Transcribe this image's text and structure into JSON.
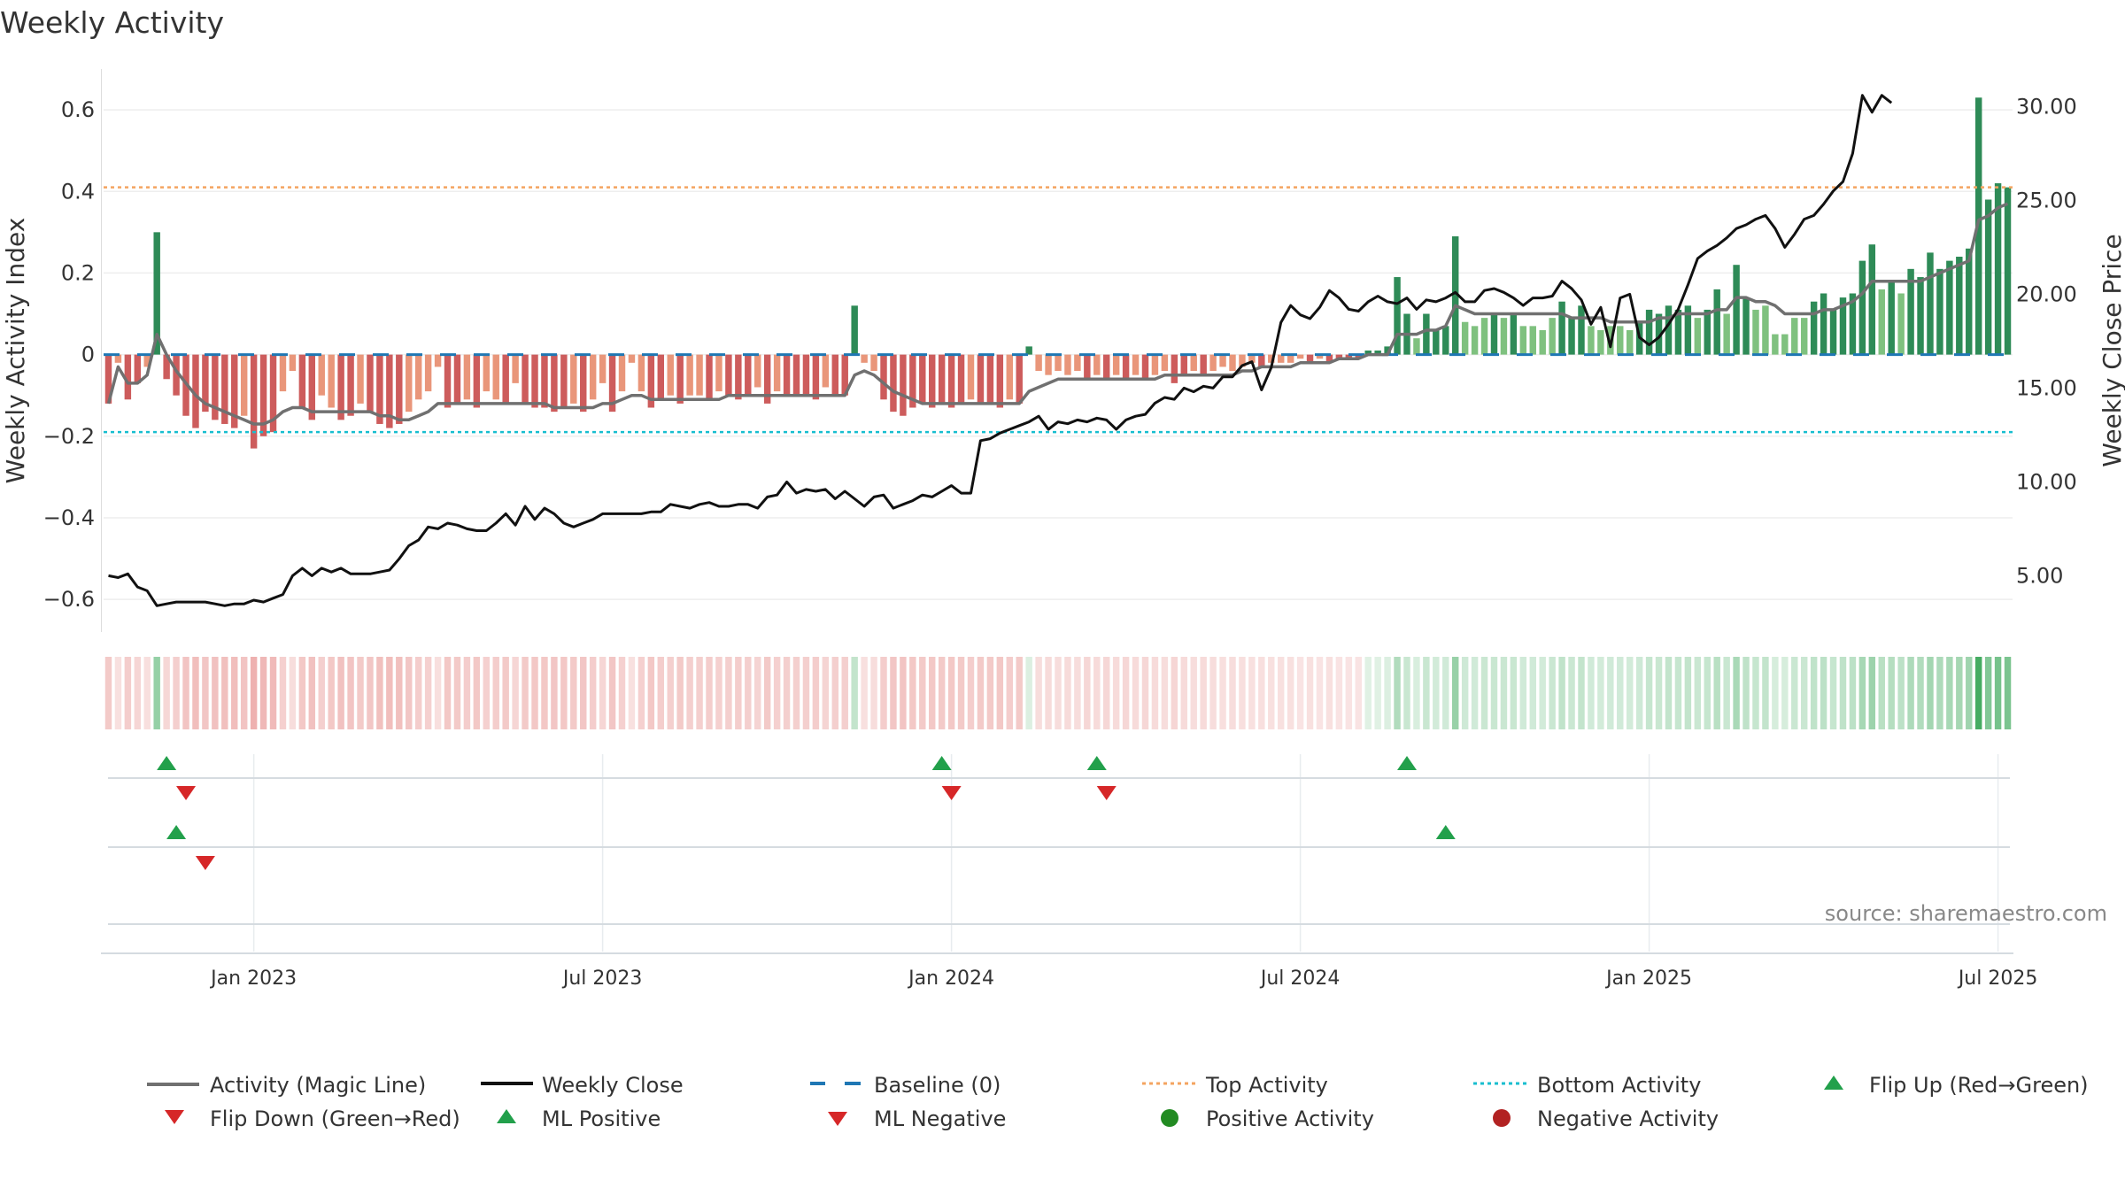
{
  "chart_data": {
    "type": "bar",
    "title": "Weekly Activity",
    "ylabel": "Weekly Activity Index",
    "y2label": "Weekly Close Price",
    "source": "source: sharemaestro.com",
    "ylim": [
      -0.68,
      0.7
    ],
    "y2lim": [
      2.0,
      32.0
    ],
    "y_ticks": [
      0.6,
      0.4,
      0.2,
      0,
      -0.2,
      -0.4,
      -0.6
    ],
    "y_tick_labels": [
      "0.6",
      "0.4",
      "0.2",
      "0",
      "−0.2",
      "−0.4",
      "−0.6"
    ],
    "y2_ticks": [
      30,
      25,
      20,
      15,
      10,
      5
    ],
    "y2_tick_labels": [
      "30.00",
      "25.00",
      "20.00",
      "15.00",
      "10.00",
      "5.00"
    ],
    "x_tick_labels": [
      "Jan 2023",
      "Jul 2023",
      "Jan 2024",
      "Jul 2024",
      "Jan 2025",
      "Jul 2025"
    ],
    "x_tick_weeks": [
      15,
      51,
      87,
      123,
      159,
      195
    ],
    "top_activity": 0.41,
    "bottom_activity": -0.19,
    "baseline": 0,
    "activity": [
      -0.12,
      -0.02,
      -0.11,
      -0.07,
      -0.03,
      0.3,
      -0.06,
      -0.1,
      -0.15,
      -0.18,
      -0.14,
      -0.16,
      -0.17,
      -0.18,
      -0.15,
      -0.23,
      -0.2,
      -0.19,
      -0.09,
      -0.04,
      -0.13,
      -0.16,
      -0.1,
      -0.13,
      -0.16,
      -0.15,
      -0.12,
      -0.14,
      -0.17,
      -0.18,
      -0.17,
      -0.14,
      -0.11,
      -0.09,
      -0.03,
      -0.13,
      -0.12,
      -0.11,
      -0.13,
      -0.09,
      -0.11,
      -0.12,
      -0.07,
      -0.12,
      -0.13,
      -0.13,
      -0.14,
      -0.13,
      -0.12,
      -0.14,
      -0.11,
      -0.07,
      -0.14,
      -0.09,
      -0.02,
      -0.09,
      -0.13,
      -0.11,
      -0.1,
      -0.12,
      -0.1,
      -0.1,
      -0.11,
      -0.09,
      -0.1,
      -0.11,
      -0.1,
      -0.08,
      -0.12,
      -0.09,
      -0.1,
      -0.1,
      -0.1,
      -0.11,
      -0.08,
      -0.1,
      -0.1,
      0.12,
      -0.02,
      -0.04,
      -0.11,
      -0.14,
      -0.15,
      -0.13,
      -0.12,
      -0.13,
      -0.12,
      -0.13,
      -0.12,
      -0.11,
      -0.12,
      -0.12,
      -0.13,
      -0.11,
      -0.12,
      0.02,
      -0.04,
      -0.05,
      -0.04,
      -0.05,
      -0.04,
      -0.06,
      -0.05,
      -0.06,
      -0.05,
      -0.06,
      -0.05,
      -0.06,
      -0.05,
      -0.04,
      -0.07,
      -0.05,
      -0.04,
      -0.05,
      -0.04,
      -0.03,
      -0.04,
      -0.03,
      -0.02,
      -0.03,
      -0.02,
      -0.02,
      -0.02,
      -0.01,
      -0.02,
      -0.01,
      -0.02,
      -0.01,
      -0.01,
      -0.01,
      0.01,
      0.01,
      0.02,
      0.19,
      0.1,
      0.04,
      0.1,
      0.06,
      0.07,
      0.29,
      0.08,
      0.07,
      0.09,
      0.1,
      0.09,
      0.1,
      0.07,
      0.07,
      0.06,
      0.09,
      0.13,
      0.09,
      0.12,
      0.07,
      0.06,
      0.07,
      0.07,
      0.06,
      0.08,
      0.11,
      0.1,
      0.12,
      0.11,
      0.12,
      0.09,
      0.11,
      0.16,
      0.1,
      0.22,
      0.14,
      0.11,
      0.12,
      0.05,
      0.05,
      0.09,
      0.09,
      0.13,
      0.15,
      0.11,
      0.14,
      0.15,
      0.23,
      0.27,
      0.16,
      0.18,
      0.15,
      0.21,
      0.19,
      0.25,
      0.21,
      0.23,
      0.24,
      0.26,
      0.63,
      0.38,
      0.42,
      0.41
    ],
    "magic_line": [
      -0.12,
      -0.03,
      -0.07,
      -0.07,
      -0.05,
      0.05,
      0.0,
      -0.04,
      -0.07,
      -0.1,
      -0.12,
      -0.13,
      -0.14,
      -0.15,
      -0.16,
      -0.17,
      -0.17,
      -0.16,
      -0.14,
      -0.13,
      -0.13,
      -0.14,
      -0.14,
      -0.14,
      -0.14,
      -0.14,
      -0.14,
      -0.14,
      -0.15,
      -0.15,
      -0.16,
      -0.16,
      -0.15,
      -0.14,
      -0.12,
      -0.12,
      -0.12,
      -0.12,
      -0.12,
      -0.12,
      -0.12,
      -0.12,
      -0.12,
      -0.12,
      -0.12,
      -0.12,
      -0.13,
      -0.13,
      -0.13,
      -0.13,
      -0.13,
      -0.12,
      -0.12,
      -0.11,
      -0.1,
      -0.1,
      -0.11,
      -0.11,
      -0.11,
      -0.11,
      -0.11,
      -0.11,
      -0.11,
      -0.11,
      -0.1,
      -0.1,
      -0.1,
      -0.1,
      -0.1,
      -0.1,
      -0.1,
      -0.1,
      -0.1,
      -0.1,
      -0.1,
      -0.1,
      -0.1,
      -0.05,
      -0.04,
      -0.05,
      -0.07,
      -0.09,
      -0.1,
      -0.11,
      -0.12,
      -0.12,
      -0.12,
      -0.12,
      -0.12,
      -0.12,
      -0.12,
      -0.12,
      -0.12,
      -0.12,
      -0.12,
      -0.09,
      -0.08,
      -0.07,
      -0.06,
      -0.06,
      -0.06,
      -0.06,
      -0.06,
      -0.06,
      -0.06,
      -0.06,
      -0.06,
      -0.06,
      -0.06,
      -0.05,
      -0.05,
      -0.05,
      -0.05,
      -0.05,
      -0.05,
      -0.05,
      -0.05,
      -0.04,
      -0.04,
      -0.03,
      -0.03,
      -0.03,
      -0.03,
      -0.02,
      -0.02,
      -0.02,
      -0.02,
      -0.01,
      -0.01,
      -0.01,
      0.0,
      0.0,
      0.0,
      0.05,
      0.05,
      0.05,
      0.06,
      0.06,
      0.07,
      0.12,
      0.11,
      0.1,
      0.1,
      0.1,
      0.1,
      0.1,
      0.1,
      0.1,
      0.1,
      0.1,
      0.1,
      0.09,
      0.09,
      0.09,
      0.09,
      0.08,
      0.08,
      0.08,
      0.08,
      0.08,
      0.09,
      0.09,
      0.1,
      0.1,
      0.1,
      0.1,
      0.11,
      0.11,
      0.14,
      0.14,
      0.13,
      0.13,
      0.12,
      0.1,
      0.1,
      0.1,
      0.1,
      0.11,
      0.11,
      0.12,
      0.13,
      0.15,
      0.18,
      0.18,
      0.18,
      0.18,
      0.18,
      0.18,
      0.19,
      0.2,
      0.21,
      0.22,
      0.23,
      0.33,
      0.34,
      0.36,
      0.37
    ],
    "weekly_close": [
      5.0,
      4.9,
      5.1,
      4.4,
      4.2,
      3.4,
      3.5,
      3.6,
      3.6,
      3.6,
      3.6,
      3.5,
      3.4,
      3.5,
      3.5,
      3.7,
      3.6,
      3.8,
      4.0,
      5.0,
      5.4,
      5.0,
      5.4,
      5.2,
      5.4,
      5.1,
      5.1,
      5.1,
      5.2,
      5.3,
      5.9,
      6.6,
      6.9,
      7.6,
      7.5,
      7.8,
      7.7,
      7.5,
      7.4,
      7.4,
      7.8,
      8.3,
      7.7,
      8.7,
      8.0,
      8.6,
      8.3,
      7.8,
      7.6,
      7.8,
      8.0,
      8.3,
      8.3,
      8.3,
      8.3,
      8.3,
      8.4,
      8.4,
      8.8,
      8.7,
      8.6,
      8.8,
      8.9,
      8.7,
      8.7,
      8.8,
      8.8,
      8.6,
      9.2,
      9.3,
      10.0,
      9.4,
      9.6,
      9.5,
      9.6,
      9.1,
      9.5,
      9.1,
      8.7,
      9.2,
      9.3,
      8.6,
      8.8,
      9.0,
      9.3,
      9.2,
      9.5,
      9.8,
      9.4,
      9.4,
      12.2,
      12.3,
      12.6,
      12.8,
      13.0,
      13.2,
      13.5,
      12.8,
      13.2,
      13.1,
      13.3,
      13.2,
      13.4,
      13.3,
      12.8,
      13.3,
      13.5,
      13.6,
      14.2,
      14.5,
      14.4,
      15.0,
      14.8,
      15.1,
      15.0,
      15.6,
      15.6,
      16.2,
      16.4,
      14.9,
      16.1,
      18.5,
      19.4,
      18.9,
      18.7,
      19.3,
      20.2,
      19.8,
      19.2,
      19.1,
      19.6,
      19.9,
      19.6,
      19.5,
      19.8,
      19.2,
      19.7,
      19.6,
      19.8,
      20.1,
      19.6,
      19.6,
      20.2,
      20.3,
      20.1,
      19.8,
      19.4,
      19.8,
      19.8,
      19.9,
      20.7,
      20.3,
      19.7,
      18.4,
      19.3,
      17.2,
      19.8,
      20.0,
      17.7,
      17.3,
      17.7,
      18.4,
      19.2,
      20.5,
      21.9,
      22.3,
      22.6,
      23.0,
      23.5,
      23.7,
      24.0,
      24.2,
      23.5,
      22.5,
      23.2,
      24.0,
      24.2,
      24.8,
      25.5,
      26.0,
      27.5,
      30.6,
      29.7,
      30.6,
      30.2
    ],
    "flip_up_weeks": [
      6,
      86,
      102,
      134
    ],
    "flip_down_weeks": [
      8,
      87,
      103
    ],
    "ml_positive_weeks": [
      7,
      138
    ],
    "ml_negative_weeks": [
      10
    ],
    "legend": [
      "Activity (Magic Line)",
      "Weekly Close",
      "Baseline (0)",
      "Top Activity",
      "Bottom Activity",
      "Flip Up (Red→Green)",
      "Flip Down (Green→Red)",
      "ML Positive",
      "ML Negative",
      "Positive Activity",
      "Negative Activity"
    ],
    "legend_placement": "bottom",
    "colors": {
      "pos_strong": "#2e8b57",
      "pos_light": "#7fc17f",
      "neg_strong": "#cd5c5c",
      "neg_light": "#e9967a",
      "magic_line": "#707070",
      "close_line": "#111111",
      "baseline": "#1f77b4",
      "top_line": "#f4a460",
      "bottom_line": "#17becf",
      "marker_green": "#22a04b",
      "marker_red": "#d62728",
      "dot_green": "#228b22",
      "dot_red": "#b22222"
    }
  }
}
